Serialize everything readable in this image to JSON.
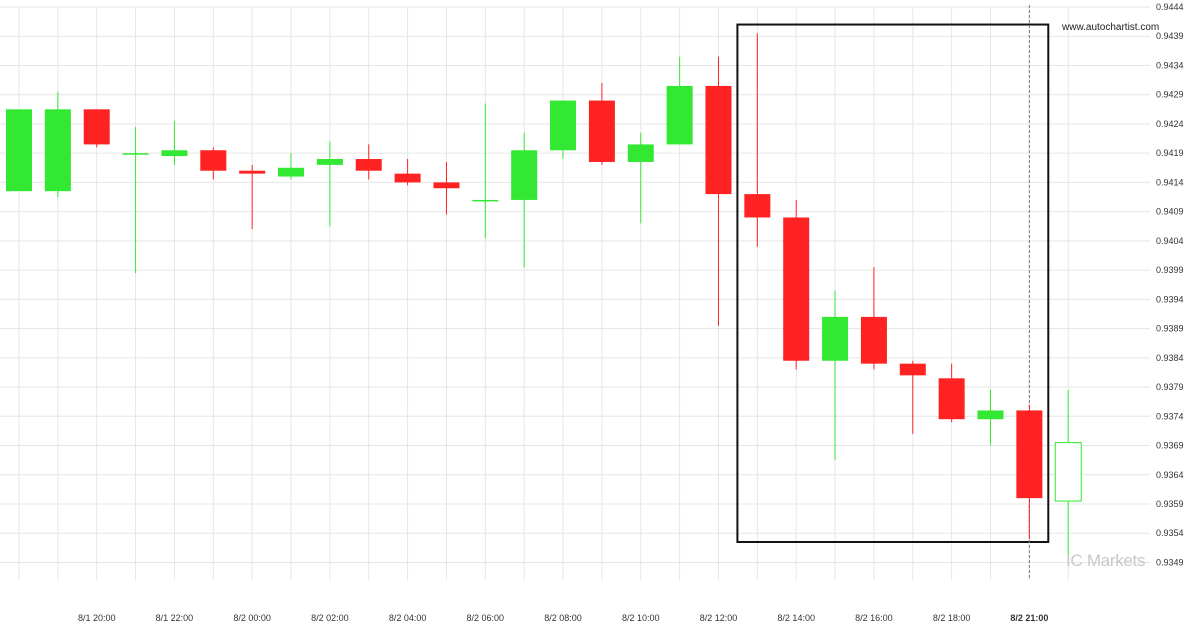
{
  "source_text": "www.autochartist.com",
  "brand_text": "IC Markets",
  "colors": {
    "up": "#33e833",
    "down": "#ff2222",
    "grid": "#e6e6e6",
    "box": "#111111",
    "axis_text": "#333333",
    "vline": "#777777"
  },
  "chart_data": {
    "type": "candlestick",
    "ylim": [
      0.9346,
      0.9444
    ],
    "y_ticks": [
      "0.9444",
      "0.9439",
      "0.9434",
      "0.9429",
      "0.9424",
      "0.9419",
      "0.9414",
      "0.9409",
      "0.9404",
      "0.9399",
      "0.9394",
      "0.9389",
      "0.9384",
      "0.9379",
      "0.9374",
      "0.9369",
      "0.9364",
      "0.9359",
      "0.9354",
      "0.9349"
    ],
    "x_tick_labels": [
      {
        "label": "8/1 20:00",
        "index": 2
      },
      {
        "label": "8/1 22:00",
        "index": 4
      },
      {
        "label": "8/2 00:00",
        "index": 6
      },
      {
        "label": "8/2 02:00",
        "index": 8
      },
      {
        "label": "8/2 04:00",
        "index": 10
      },
      {
        "label": "8/2 06:00",
        "index": 12
      },
      {
        "label": "8/2 08:00",
        "index": 14
      },
      {
        "label": "8/2 10:00",
        "index": 16
      },
      {
        "label": "8/2 12:00",
        "index": 18
      },
      {
        "label": "8/2 14:00",
        "index": 20
      },
      {
        "label": "8/2 16:00",
        "index": 22
      },
      {
        "label": "8/2 18:00",
        "index": 24
      },
      {
        "label": "8/2 21:00",
        "index": 26,
        "bold": true
      }
    ],
    "candles": [
      {
        "o": 0.94125,
        "h": 0.94265,
        "l": 0.94125,
        "c": 0.94265
      },
      {
        "o": 0.94125,
        "h": 0.94295,
        "l": 0.94115,
        "c": 0.94265
      },
      {
        "o": 0.94265,
        "h": 0.94265,
        "l": 0.942,
        "c": 0.94205
      },
      {
        "o": 0.9419,
        "h": 0.94235,
        "l": 0.93985,
        "c": 0.9419
      },
      {
        "o": 0.94185,
        "h": 0.94245,
        "l": 0.9417,
        "c": 0.94195
      },
      {
        "o": 0.94195,
        "h": 0.942,
        "l": 0.94145,
        "c": 0.9416
      },
      {
        "o": 0.9416,
        "h": 0.9417,
        "l": 0.9406,
        "c": 0.94155
      },
      {
        "o": 0.9415,
        "h": 0.9419,
        "l": 0.94145,
        "c": 0.94165
      },
      {
        "o": 0.9417,
        "h": 0.9421,
        "l": 0.94065,
        "c": 0.9418
      },
      {
        "o": 0.9418,
        "h": 0.94205,
        "l": 0.94145,
        "c": 0.9416
      },
      {
        "o": 0.94155,
        "h": 0.9418,
        "l": 0.94135,
        "c": 0.9414
      },
      {
        "o": 0.9414,
        "h": 0.94175,
        "l": 0.94085,
        "c": 0.9413
      },
      {
        "o": 0.9411,
        "h": 0.94275,
        "l": 0.94045,
        "c": 0.9411
      },
      {
        "o": 0.9411,
        "h": 0.94225,
        "l": 0.93995,
        "c": 0.94195
      },
      {
        "o": 0.94195,
        "h": 0.9428,
        "l": 0.9418,
        "c": 0.9428
      },
      {
        "o": 0.9428,
        "h": 0.9431,
        "l": 0.9417,
        "c": 0.94175
      },
      {
        "o": 0.94175,
        "h": 0.94225,
        "l": 0.9407,
        "c": 0.94205
      },
      {
        "o": 0.94205,
        "h": 0.94355,
        "l": 0.94205,
        "c": 0.94305
      },
      {
        "o": 0.94305,
        "h": 0.94355,
        "l": 0.93895,
        "c": 0.9412
      },
      {
        "o": 0.9412,
        "h": 0.94395,
        "l": 0.9403,
        "c": 0.9408
      },
      {
        "o": 0.9408,
        "h": 0.9411,
        "l": 0.9382,
        "c": 0.93835
      },
      {
        "o": 0.93835,
        "h": 0.93955,
        "l": 0.93665,
        "c": 0.9391
      },
      {
        "o": 0.9391,
        "h": 0.93995,
        "l": 0.9382,
        "c": 0.9383
      },
      {
        "o": 0.9383,
        "h": 0.93835,
        "l": 0.9371,
        "c": 0.9381
      },
      {
        "o": 0.93805,
        "h": 0.9383,
        "l": 0.9373,
        "c": 0.93735
      },
      {
        "o": 0.93735,
        "h": 0.93785,
        "l": 0.9369,
        "c": 0.9375
      },
      {
        "o": 0.9375,
        "h": 0.9376,
        "l": 0.9353,
        "c": 0.936
      },
      {
        "o": 0.93595,
        "h": 0.93785,
        "l": 0.93495,
        "c": 0.93695,
        "hollow": true
      }
    ],
    "highlight_range": {
      "start_index": 19,
      "end_index": 26,
      "top": 0.9441,
      "bottom": 0.93525
    },
    "current_index": 26
  }
}
